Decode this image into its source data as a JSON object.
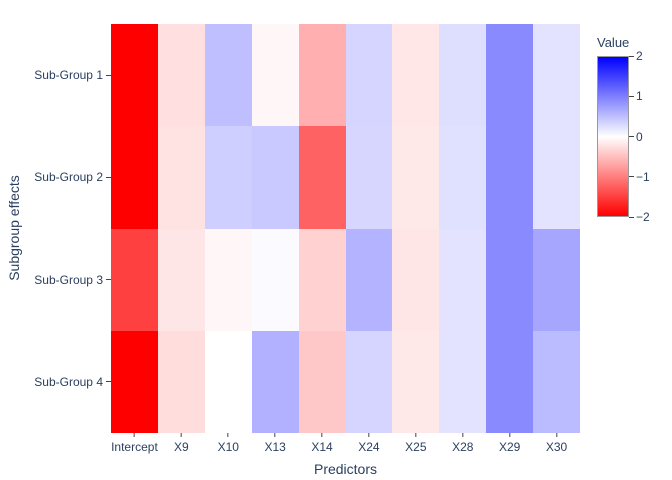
{
  "figure": {
    "background": "#ffffff",
    "text_color": "#2a3f5f"
  },
  "chart_data": {
    "type": "heatmap",
    "title": "",
    "xlabel": "Predictors",
    "ylabel": "Subgroup effects",
    "x_categories": [
      "Intercept",
      "X9",
      "X10",
      "X13",
      "X14",
      "X24",
      "X25",
      "X28",
      "X29",
      "X30"
    ],
    "y_categories": [
      "Sub-Group 1",
      "Sub-Group 2",
      "Sub-Group 3",
      "Sub-Group 4"
    ],
    "z": [
      [
        -2.0,
        -0.25,
        0.5,
        -0.06,
        -0.63,
        0.33,
        -0.19,
        0.26,
        0.92,
        0.22
      ],
      [
        -2.0,
        -0.22,
        0.38,
        0.42,
        -1.23,
        0.32,
        -0.18,
        0.24,
        0.92,
        0.22
      ],
      [
        -1.5,
        -0.2,
        -0.06,
        0.04,
        -0.36,
        0.6,
        -0.2,
        0.22,
        0.92,
        0.7
      ],
      [
        -2.0,
        -0.27,
        0.0,
        0.61,
        -0.43,
        0.33,
        -0.18,
        0.22,
        0.92,
        0.53
      ]
    ],
    "zmin": -2,
    "zmax": 2,
    "colorscale": [
      {
        "value": -2,
        "color": "#ff0000"
      },
      {
        "value": 0,
        "color": "#ffffff"
      },
      {
        "value": 2,
        "color": "#0000ff"
      }
    ],
    "grid": false,
    "legend_position": "right",
    "colorbar": {
      "title": "Value",
      "tick_labels": [
        "2",
        "1",
        "0",
        "−1",
        "−2"
      ],
      "tick_values": [
        2,
        1,
        0,
        -1,
        -2
      ]
    }
  }
}
